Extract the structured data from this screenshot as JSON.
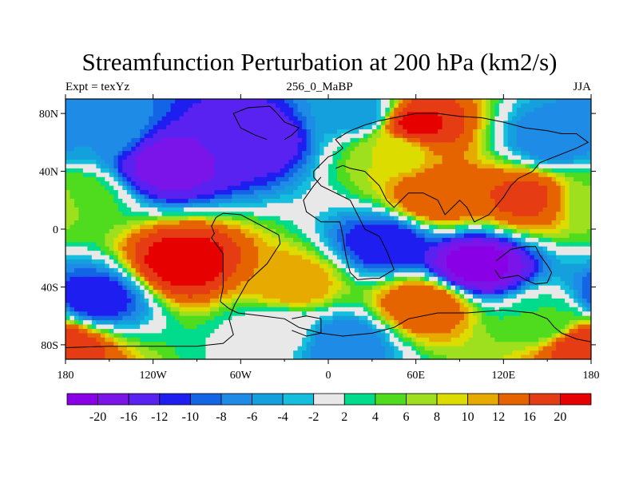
{
  "chart_data": {
    "type": "heatmap",
    "title": "Streamfunction Perturbation at 200 hPa (km2/s)",
    "left_string": "Expt = texYz",
    "center_string": "256_0_MaBP",
    "right_string": "JJA",
    "xlim": [
      -180,
      180
    ],
    "ylim": [
      -90,
      90
    ],
    "x_ticks": [
      {
        "value": -180,
        "label": "180"
      },
      {
        "value": -120,
        "label": "120W"
      },
      {
        "value": -60,
        "label": "60W"
      },
      {
        "value": 0,
        "label": "0"
      },
      {
        "value": 60,
        "label": "60E"
      },
      {
        "value": 120,
        "label": "120E"
      },
      {
        "value": 180,
        "label": "180"
      }
    ],
    "y_ticks": [
      {
        "value": 80,
        "label": "80N"
      },
      {
        "value": 40,
        "label": "40N"
      },
      {
        "value": 0,
        "label": "0"
      },
      {
        "value": -40,
        "label": "40S"
      },
      {
        "value": -80,
        "label": "80S"
      }
    ],
    "colorbar": {
      "levels": [
        -20,
        -16,
        -12,
        -10,
        -8,
        -6,
        -4,
        -2,
        2,
        4,
        6,
        8,
        10,
        12,
        16,
        20
      ],
      "labels": [
        "-20",
        "-16",
        "-12",
        "-10",
        "-8",
        "-6",
        "-4",
        "-2",
        "2",
        "4",
        "6",
        "8",
        "10",
        "12",
        "16",
        "20"
      ],
      "colors": [
        "#8a00e6",
        "#7a14e8",
        "#5a22f0",
        "#1e1ef0",
        "#1464e6",
        "#1e8ce6",
        "#14a0dc",
        "#14bedc",
        "#e8e8e8",
        "#00dc8c",
        "#50dc1e",
        "#9ee01e",
        "#dcdc00",
        "#e6aa00",
        "#e66400",
        "#e63c14",
        "#e60000"
      ]
    },
    "features": [
      {
        "lon": -110,
        "lat": 45,
        "value": -18
      },
      {
        "lon": -50,
        "lat": 63,
        "value": -15
      },
      {
        "lon": 20,
        "lat": 80,
        "value": -6
      },
      {
        "lon": 155,
        "lat": 62,
        "value": -8
      },
      {
        "lon": -155,
        "lat": 68,
        "value": -6
      },
      {
        "lon": 60,
        "lat": 72,
        "value": 21
      },
      {
        "lon": 45,
        "lat": 55,
        "value": 8
      },
      {
        "lon": 75,
        "lat": 22,
        "value": 16
      },
      {
        "lon": 135,
        "lat": 22,
        "value": 17
      },
      {
        "lon": -100,
        "lat": -23,
        "value": 22
      },
      {
        "lon": -25,
        "lat": -38,
        "value": 12
      },
      {
        "lon": -175,
        "lat": 22,
        "value": 6
      },
      {
        "lon": 100,
        "lat": -25,
        "value": -22
      },
      {
        "lon": 40,
        "lat": -10,
        "value": -12
      },
      {
        "lon": -160,
        "lat": -48,
        "value": -12
      },
      {
        "lon": 65,
        "lat": -52,
        "value": 16
      },
      {
        "lon": 10,
        "lat": -78,
        "value": -8
      },
      {
        "lon": 175,
        "lat": -80,
        "value": 20
      },
      {
        "lon": 150,
        "lat": -65,
        "value": 4
      },
      {
        "lon": -35,
        "lat": -70,
        "value": 0
      }
    ],
    "continent_outlines": [
      [
        [
          -180,
          -82
        ],
        [
          -150,
          -81
        ],
        [
          -120,
          -81
        ],
        [
          -90,
          -81
        ],
        [
          -72,
          -79
        ],
        [
          -65,
          -73
        ],
        [
          -68,
          -62
        ],
        [
          -64,
          -52
        ],
        [
          -60,
          -45
        ],
        [
          -55,
          -36
        ],
        [
          -42,
          -24
        ],
        [
          -33,
          -10
        ],
        [
          -34,
          -4
        ],
        [
          -45,
          2
        ],
        [
          -60,
          10
        ],
        [
          -72,
          11
        ],
        [
          -77,
          8
        ],
        [
          -80,
          2
        ],
        [
          -78,
          -3
        ],
        [
          -80,
          -6
        ],
        [
          -72,
          -17
        ],
        [
          -72,
          -40
        ],
        [
          -74,
          -50
        ],
        [
          -68,
          -55
        ],
        [
          -62,
          -58
        ],
        [
          -45,
          -60
        ],
        [
          -30,
          -62
        ],
        [
          -20,
          -68
        ],
        [
          -5,
          -72
        ],
        [
          10,
          -74
        ],
        [
          30,
          -72
        ],
        [
          45,
          -68
        ],
        [
          55,
          -62
        ],
        [
          75,
          -58
        ],
        [
          95,
          -58
        ],
        [
          120,
          -56
        ],
        [
          140,
          -58
        ],
        [
          150,
          -62
        ],
        [
          155,
          -68
        ],
        [
          160,
          -72
        ],
        [
          170,
          -76
        ],
        [
          180,
          -78
        ]
      ],
      [
        [
          -30,
          62
        ],
        [
          -25,
          65
        ],
        [
          -20,
          70
        ],
        [
          -30,
          74
        ],
        [
          -35,
          80
        ],
        [
          -40,
          85
        ],
        [
          -55,
          84
        ],
        [
          -65,
          80
        ],
        [
          -60,
          70
        ],
        [
          -50,
          65
        ],
        [
          -42,
          62
        ]
      ],
      [
        [
          -10,
          40
        ],
        [
          -10,
          36
        ],
        [
          -5,
          30
        ],
        [
          5,
          25
        ],
        [
          15,
          20
        ],
        [
          20,
          10
        ],
        [
          25,
          0
        ],
        [
          35,
          -5
        ],
        [
          40,
          -15
        ],
        [
          45,
          -28
        ],
        [
          35,
          -34
        ],
        [
          30,
          -34
        ],
        [
          20,
          -35
        ],
        [
          15,
          -30
        ],
        [
          12,
          -18
        ],
        [
          10,
          -5
        ],
        [
          8,
          5
        ],
        [
          -5,
          5
        ],
        [
          -15,
          12
        ],
        [
          -17,
          20
        ],
        [
          -10,
          30
        ],
        [
          -5,
          36
        ]
      ],
      [
        [
          -10,
          40
        ],
        [
          -5,
          45
        ],
        [
          0,
          50
        ],
        [
          5,
          52
        ],
        [
          10,
          56
        ],
        [
          5,
          62
        ],
        [
          15,
          68
        ],
        [
          25,
          72
        ],
        [
          35,
          75
        ],
        [
          50,
          78
        ],
        [
          60,
          80
        ],
        [
          75,
          80
        ],
        [
          90,
          78
        ],
        [
          105,
          77
        ],
        [
          120,
          74
        ],
        [
          135,
          70
        ],
        [
          150,
          68
        ],
        [
          160,
          66
        ],
        [
          170,
          66
        ],
        [
          178,
          60
        ],
        [
          170,
          56
        ],
        [
          160,
          52
        ],
        [
          145,
          46
        ],
        [
          140,
          40
        ],
        [
          130,
          35
        ],
        [
          125,
          30
        ],
        [
          120,
          22
        ],
        [
          110,
          10
        ],
        [
          100,
          5
        ],
        [
          95,
          15
        ],
        [
          90,
          20
        ],
        [
          80,
          10
        ],
        [
          75,
          20
        ],
        [
          65,
          25
        ],
        [
          55,
          25
        ],
        [
          45,
          15
        ],
        [
          40,
          20
        ],
        [
          35,
          30
        ],
        [
          30,
          35
        ],
        [
          25,
          40
        ],
        [
          15,
          42
        ],
        [
          10,
          44
        ],
        [
          5,
          42
        ]
      ],
      [
        [
          115,
          -22
        ],
        [
          125,
          -14
        ],
        [
          135,
          -12
        ],
        [
          142,
          -12
        ],
        [
          145,
          -18
        ],
        [
          150,
          -25
        ],
        [
          153,
          -30
        ],
        [
          150,
          -37
        ],
        [
          142,
          -38
        ],
        [
          135,
          -35
        ],
        [
          130,
          -32
        ],
        [
          118,
          -34
        ],
        [
          114,
          -28
        ]
      ],
      [
        [
          -25,
          -62
        ],
        [
          -15,
          -60
        ],
        [
          -5,
          -62
        ],
        [
          -5,
          -72
        ],
        [
          -15,
          -74
        ],
        [
          -25,
          -70
        ]
      ]
    ]
  }
}
